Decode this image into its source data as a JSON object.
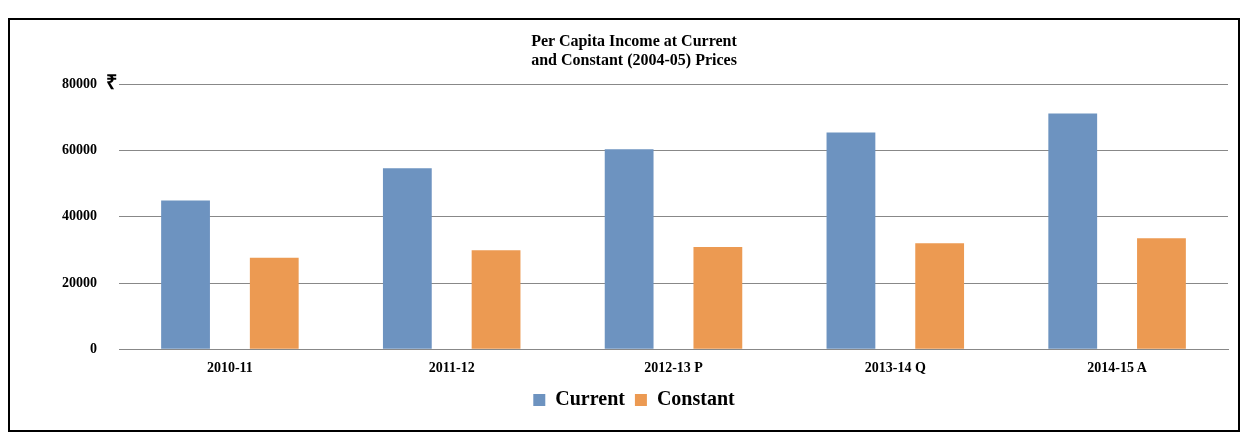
{
  "chart_data": {
    "type": "bar",
    "title": "Per Capita Income at Current\nand Constant (2004-05) Prices",
    "ylabel": "₹",
    "categories": [
      "2010-11",
      "2011-12",
      "2012-13 P",
      "2013-14 Q",
      "2014-15 A"
    ],
    "series": [
      {
        "name": "Current",
        "color": "#6d93c0",
        "values": [
          44900,
          54700,
          60400,
          65500,
          71200
        ]
      },
      {
        "name": "Constant",
        "color": "#ec9a52",
        "values": [
          27600,
          29900,
          30900,
          32000,
          33500
        ]
      }
    ],
    "ylim": [
      0,
      80000
    ],
    "yticks": [
      0,
      20000,
      40000,
      60000,
      80000
    ],
    "grid": "y",
    "legend": "bottom"
  }
}
